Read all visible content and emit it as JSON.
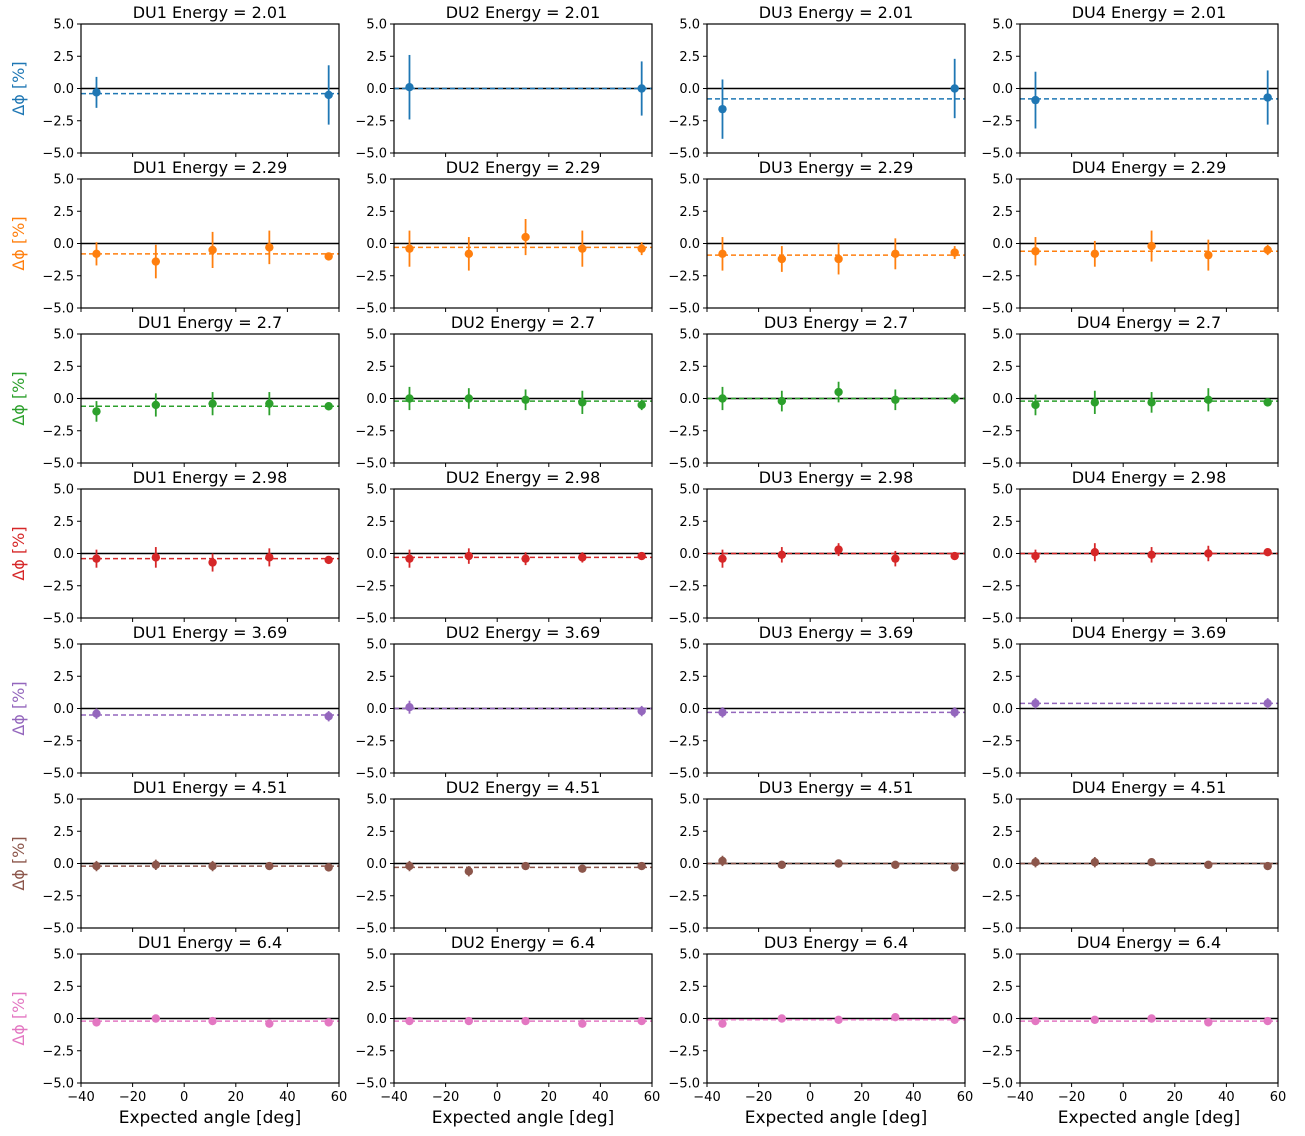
{
  "chart_data": {
    "type": "scatter",
    "layout": "7 rows x 4 columns of panels",
    "units": [
      "DU1",
      "DU2",
      "DU3",
      "DU4"
    ],
    "energy_rows": [
      {
        "energy": "2.01",
        "color": "#1f77b4"
      },
      {
        "energy": "2.29",
        "color": "#ff7f0e"
      },
      {
        "energy": "2.7",
        "color": "#2ca02c"
      },
      {
        "energy": "2.98",
        "color": "#d62728"
      },
      {
        "energy": "3.69",
        "color": "#9467bd"
      },
      {
        "energy": "4.51",
        "color": "#8c564b"
      },
      {
        "energy": "6.4",
        "color": "#e377c2"
      }
    ],
    "title_template": "{du} Energy = {energy}",
    "xlabel": "Expected angle [deg]",
    "ylabel": "Δϕ [%]",
    "xlim": [
      -40,
      60
    ],
    "ylim": [
      -5.0,
      5.0
    ],
    "x_ticks": [
      "−40",
      "−20",
      "0",
      "20",
      "40",
      "60"
    ],
    "y_ticks": [
      "5.0",
      "2.5",
      "0.0",
      "−2.5",
      "−5.0"
    ],
    "reference_line": 0,
    "grid": false,
    "panels": [
      {
        "du": "DU1",
        "energy": "2.01",
        "mean": -0.4,
        "points": [
          {
            "x": -34,
            "y": -0.3,
            "err": 1.2
          },
          {
            "x": 56,
            "y": -0.5,
            "err": 2.3
          }
        ]
      },
      {
        "du": "DU2",
        "energy": "2.01",
        "mean": 0.0,
        "points": [
          {
            "x": -34,
            "y": 0.1,
            "err": 2.5
          },
          {
            "x": 56,
            "y": 0.0,
            "err": 2.1
          }
        ]
      },
      {
        "du": "DU3",
        "energy": "2.01",
        "mean": -0.8,
        "points": [
          {
            "x": -34,
            "y": -1.6,
            "err": 2.3
          },
          {
            "x": 56,
            "y": 0.0,
            "err": 2.3
          }
        ]
      },
      {
        "du": "DU4",
        "energy": "2.01",
        "mean": -0.8,
        "points": [
          {
            "x": -34,
            "y": -0.9,
            "err": 2.2
          },
          {
            "x": 56,
            "y": -0.7,
            "err": 2.1
          }
        ]
      },
      {
        "du": "DU1",
        "energy": "2.29",
        "mean": -0.8,
        "points": [
          {
            "x": -34,
            "y": -0.8,
            "err": 0.9
          },
          {
            "x": -11,
            "y": -1.4,
            "err": 1.3
          },
          {
            "x": 11,
            "y": -0.5,
            "err": 1.4
          },
          {
            "x": 33,
            "y": -0.3,
            "err": 1.3
          },
          {
            "x": 56,
            "y": -1.0,
            "err": 0.3
          }
        ]
      },
      {
        "du": "DU2",
        "energy": "2.29",
        "mean": -0.3,
        "points": [
          {
            "x": -34,
            "y": -0.4,
            "err": 1.4
          },
          {
            "x": -11,
            "y": -0.8,
            "err": 1.3
          },
          {
            "x": 11,
            "y": 0.5,
            "err": 1.4
          },
          {
            "x": 33,
            "y": -0.4,
            "err": 1.4
          },
          {
            "x": 56,
            "y": -0.4,
            "err": 0.5
          }
        ]
      },
      {
        "du": "DU3",
        "energy": "2.29",
        "mean": -0.9,
        "points": [
          {
            "x": -34,
            "y": -0.8,
            "err": 1.3
          },
          {
            "x": -11,
            "y": -1.2,
            "err": 1.0
          },
          {
            "x": 11,
            "y": -1.2,
            "err": 1.2
          },
          {
            "x": 33,
            "y": -0.8,
            "err": 1.2
          },
          {
            "x": 56,
            "y": -0.7,
            "err": 0.5
          }
        ]
      },
      {
        "du": "DU4",
        "energy": "2.29",
        "mean": -0.6,
        "points": [
          {
            "x": -34,
            "y": -0.6,
            "err": 1.1
          },
          {
            "x": -11,
            "y": -0.8,
            "err": 1.0
          },
          {
            "x": 11,
            "y": -0.2,
            "err": 1.2
          },
          {
            "x": 33,
            "y": -0.9,
            "err": 1.2
          },
          {
            "x": 56,
            "y": -0.5,
            "err": 0.4
          }
        ]
      },
      {
        "du": "DU1",
        "energy": "2.7",
        "mean": -0.6,
        "points": [
          {
            "x": -34,
            "y": -1.0,
            "err": 0.8
          },
          {
            "x": -11,
            "y": -0.5,
            "err": 0.9
          },
          {
            "x": 11,
            "y": -0.4,
            "err": 0.9
          },
          {
            "x": 33,
            "y": -0.4,
            "err": 0.9
          },
          {
            "x": 56,
            "y": -0.6,
            "err": 0.3
          }
        ]
      },
      {
        "du": "DU2",
        "energy": "2.7",
        "mean": -0.2,
        "points": [
          {
            "x": -34,
            "y": 0.0,
            "err": 0.9
          },
          {
            "x": -11,
            "y": 0.0,
            "err": 0.8
          },
          {
            "x": 11,
            "y": -0.1,
            "err": 0.8
          },
          {
            "x": 33,
            "y": -0.3,
            "err": 0.9
          },
          {
            "x": 56,
            "y": -0.5,
            "err": 0.4
          }
        ]
      },
      {
        "du": "DU3",
        "energy": "2.7",
        "mean": 0.0,
        "points": [
          {
            "x": -34,
            "y": 0.0,
            "err": 0.9
          },
          {
            "x": -11,
            "y": -0.2,
            "err": 0.8
          },
          {
            "x": 11,
            "y": 0.5,
            "err": 0.8
          },
          {
            "x": 33,
            "y": -0.1,
            "err": 0.8
          },
          {
            "x": 56,
            "y": 0.0,
            "err": 0.4
          }
        ]
      },
      {
        "du": "DU4",
        "energy": "2.7",
        "mean": -0.2,
        "points": [
          {
            "x": -34,
            "y": -0.5,
            "err": 0.8
          },
          {
            "x": -11,
            "y": -0.3,
            "err": 0.9
          },
          {
            "x": 11,
            "y": -0.3,
            "err": 0.8
          },
          {
            "x": 33,
            "y": -0.1,
            "err": 0.9
          },
          {
            "x": 56,
            "y": -0.3,
            "err": 0.3
          }
        ]
      },
      {
        "du": "DU1",
        "energy": "2.98",
        "mean": -0.4,
        "points": [
          {
            "x": -34,
            "y": -0.4,
            "err": 0.7
          },
          {
            "x": -11,
            "y": -0.3,
            "err": 0.8
          },
          {
            "x": 11,
            "y": -0.7,
            "err": 0.7
          },
          {
            "x": 33,
            "y": -0.3,
            "err": 0.7
          },
          {
            "x": 56,
            "y": -0.5,
            "err": 0.3
          }
        ]
      },
      {
        "du": "DU2",
        "energy": "2.98",
        "mean": -0.3,
        "points": [
          {
            "x": -34,
            "y": -0.4,
            "err": 0.7
          },
          {
            "x": -11,
            "y": -0.2,
            "err": 0.6
          },
          {
            "x": 11,
            "y": -0.4,
            "err": 0.5
          },
          {
            "x": 33,
            "y": -0.3,
            "err": 0.4
          },
          {
            "x": 56,
            "y": -0.2,
            "err": 0.3
          }
        ]
      },
      {
        "du": "DU3",
        "energy": "2.98",
        "mean": 0.0,
        "points": [
          {
            "x": -34,
            "y": -0.4,
            "err": 0.7
          },
          {
            "x": -11,
            "y": -0.1,
            "err": 0.6
          },
          {
            "x": 11,
            "y": 0.3,
            "err": 0.5
          },
          {
            "x": 33,
            "y": -0.4,
            "err": 0.6
          },
          {
            "x": 56,
            "y": -0.2,
            "err": 0.3
          }
        ]
      },
      {
        "du": "DU4",
        "energy": "2.98",
        "mean": 0.0,
        "points": [
          {
            "x": -34,
            "y": -0.2,
            "err": 0.5
          },
          {
            "x": -11,
            "y": 0.1,
            "err": 0.7
          },
          {
            "x": 11,
            "y": -0.1,
            "err": 0.6
          },
          {
            "x": 33,
            "y": 0.0,
            "err": 0.6
          },
          {
            "x": 56,
            "y": 0.1,
            "err": 0.2
          }
        ]
      },
      {
        "du": "DU1",
        "energy": "3.69",
        "mean": -0.5,
        "points": [
          {
            "x": -34,
            "y": -0.4,
            "err": 0.4
          },
          {
            "x": 56,
            "y": -0.6,
            "err": 0.4
          }
        ]
      },
      {
        "du": "DU2",
        "energy": "3.69",
        "mean": 0.0,
        "points": [
          {
            "x": -34,
            "y": 0.1,
            "err": 0.5
          },
          {
            "x": 56,
            "y": -0.2,
            "err": 0.4
          }
        ]
      },
      {
        "du": "DU3",
        "energy": "3.69",
        "mean": -0.3,
        "points": [
          {
            "x": -34,
            "y": -0.3,
            "err": 0.4
          },
          {
            "x": 56,
            "y": -0.3,
            "err": 0.4
          }
        ]
      },
      {
        "du": "DU4",
        "energy": "3.69",
        "mean": 0.4,
        "points": [
          {
            "x": -34,
            "y": 0.4,
            "err": 0.4
          },
          {
            "x": 56,
            "y": 0.4,
            "err": 0.4
          }
        ]
      },
      {
        "du": "DU1",
        "energy": "4.51",
        "mean": -0.2,
        "points": [
          {
            "x": -34,
            "y": -0.2,
            "err": 0.4
          },
          {
            "x": -11,
            "y": -0.1,
            "err": 0.4
          },
          {
            "x": 11,
            "y": -0.2,
            "err": 0.4
          },
          {
            "x": 33,
            "y": -0.2,
            "err": 0.3
          },
          {
            "x": 56,
            "y": -0.3,
            "err": 0.3
          }
        ]
      },
      {
        "du": "DU2",
        "energy": "4.51",
        "mean": -0.3,
        "points": [
          {
            "x": -34,
            "y": -0.2,
            "err": 0.4
          },
          {
            "x": -11,
            "y": -0.6,
            "err": 0.4
          },
          {
            "x": 11,
            "y": -0.2,
            "err": 0.3
          },
          {
            "x": 33,
            "y": -0.4,
            "err": 0.3
          },
          {
            "x": 56,
            "y": -0.2,
            "err": 0.3
          }
        ]
      },
      {
        "du": "DU3",
        "energy": "4.51",
        "mean": 0.0,
        "points": [
          {
            "x": -34,
            "y": 0.2,
            "err": 0.4
          },
          {
            "x": -11,
            "y": -0.1,
            "err": 0.3
          },
          {
            "x": 11,
            "y": 0.0,
            "err": 0.3
          },
          {
            "x": 33,
            "y": -0.1,
            "err": 0.3
          },
          {
            "x": 56,
            "y": -0.3,
            "err": 0.3
          }
        ]
      },
      {
        "du": "DU4",
        "energy": "4.51",
        "mean": 0.0,
        "points": [
          {
            "x": -34,
            "y": 0.1,
            "err": 0.4
          },
          {
            "x": -11,
            "y": 0.1,
            "err": 0.4
          },
          {
            "x": 11,
            "y": 0.1,
            "err": 0.3
          },
          {
            "x": 33,
            "y": -0.1,
            "err": 0.3
          },
          {
            "x": 56,
            "y": -0.2,
            "err": 0.3
          }
        ]
      },
      {
        "du": "DU1",
        "energy": "6.4",
        "mean": -0.2,
        "points": [
          {
            "x": -34,
            "y": -0.3,
            "err": 0.2
          },
          {
            "x": -11,
            "y": 0.0,
            "err": 0.2
          },
          {
            "x": 11,
            "y": -0.2,
            "err": 0.2
          },
          {
            "x": 33,
            "y": -0.4,
            "err": 0.2
          },
          {
            "x": 56,
            "y": -0.3,
            "err": 0.2
          }
        ]
      },
      {
        "du": "DU2",
        "energy": "6.4",
        "mean": -0.2,
        "points": [
          {
            "x": -34,
            "y": -0.2,
            "err": 0.2
          },
          {
            "x": -11,
            "y": -0.2,
            "err": 0.2
          },
          {
            "x": 11,
            "y": -0.2,
            "err": 0.2
          },
          {
            "x": 33,
            "y": -0.4,
            "err": 0.2
          },
          {
            "x": 56,
            "y": -0.2,
            "err": 0.2
          }
        ]
      },
      {
        "du": "DU3",
        "energy": "6.4",
        "mean": -0.1,
        "points": [
          {
            "x": -34,
            "y": -0.4,
            "err": 0.2
          },
          {
            "x": -11,
            "y": 0.0,
            "err": 0.2
          },
          {
            "x": 11,
            "y": -0.1,
            "err": 0.2
          },
          {
            "x": 33,
            "y": 0.1,
            "err": 0.2
          },
          {
            "x": 56,
            "y": -0.1,
            "err": 0.2
          }
        ]
      },
      {
        "du": "DU4",
        "energy": "6.4",
        "mean": -0.2,
        "points": [
          {
            "x": -34,
            "y": -0.2,
            "err": 0.2
          },
          {
            "x": -11,
            "y": -0.1,
            "err": 0.2
          },
          {
            "x": 11,
            "y": 0.0,
            "err": 0.2
          },
          {
            "x": 33,
            "y": -0.3,
            "err": 0.2
          },
          {
            "x": 56,
            "y": -0.2,
            "err": 0.2
          }
        ]
      }
    ]
  }
}
